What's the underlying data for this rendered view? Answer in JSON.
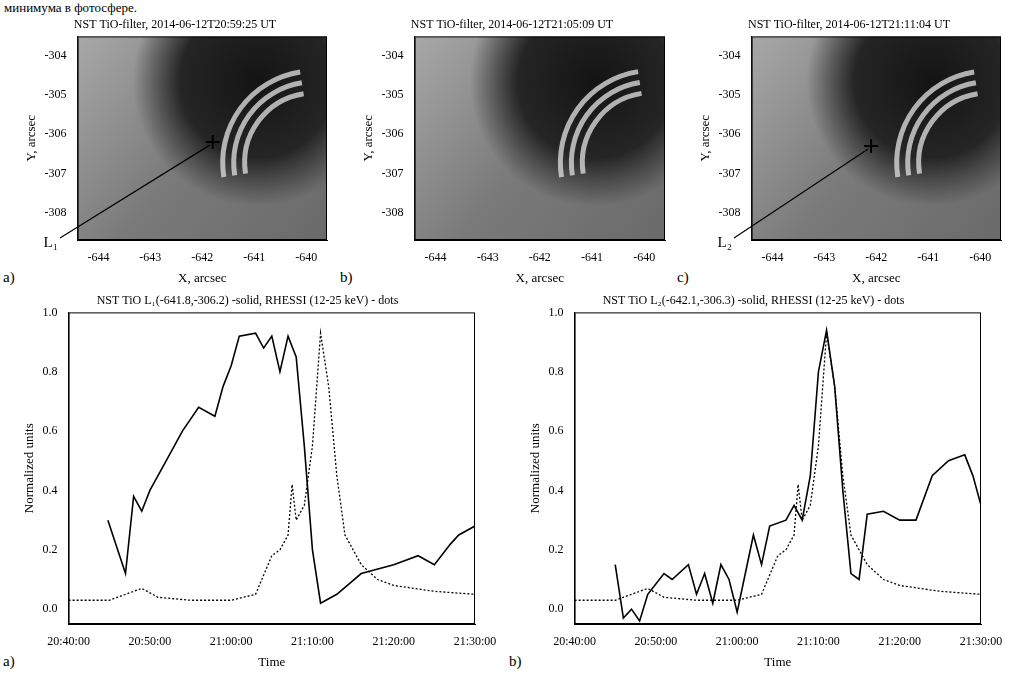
{
  "text_fragment": "минимума в фотосфере.",
  "chart_data": [
    {
      "type": "image",
      "panel": "a)",
      "title": "NST TiO-filter, 2014-06-12T20:59:25 UT",
      "x_label": "X, arcsec",
      "y_label": "Y, arcsec",
      "xlim": [
        -644.4,
        -639.6
      ],
      "ylim": [
        -308.7,
        -303.5
      ],
      "xticks": [
        -644,
        -643,
        -642,
        -641,
        -640
      ],
      "yticks": [
        -308,
        -307,
        -306,
        -305,
        -304
      ],
      "grid": false,
      "points": [
        {
          "label": "L₁",
          "x": -641.8,
          "y": -306.2,
          "marker": "plus"
        }
      ]
    },
    {
      "type": "image",
      "panel": "b)",
      "title": "NST TiO-filter, 2014-06-12T21:05:09 UT",
      "x_label": "X, arcsec",
      "y_label": "Y, arcsec",
      "xlim": [
        -644.4,
        -639.6
      ],
      "ylim": [
        -308.7,
        -303.5
      ],
      "xticks": [
        -644,
        -643,
        -642,
        -641,
        -640
      ],
      "yticks": [
        -308,
        -307,
        -306,
        -305,
        -304
      ],
      "grid": false
    },
    {
      "type": "image",
      "panel": "c)",
      "title": "NST TiO-filter, 2014-06-12T21:11:04 UT",
      "x_label": "X, arcsec",
      "y_label": "Y, arcsec",
      "xlim": [
        -644.4,
        -639.6
      ],
      "ylim": [
        -308.7,
        -303.5
      ],
      "xticks": [
        -644,
        -643,
        -642,
        -641,
        -640
      ],
      "yticks": [
        -308,
        -307,
        -306,
        -305,
        -304
      ],
      "grid": false,
      "points": [
        {
          "label": "L₂",
          "x": -642.1,
          "y": -306.3,
          "marker": "plus"
        }
      ]
    },
    {
      "type": "line",
      "panel": "a)",
      "title": "NST TiO L₁(-641.8,-306.2) -solid, RHESSI (12-25 keV) - dots",
      "x_label": "Time",
      "y_label": "Normalized units",
      "xlim": [
        "20:40:00",
        "21:30:00"
      ],
      "ylim": [
        -0.05,
        1.0
      ],
      "xticks": [
        "20:40:00",
        "20:50:00",
        "21:00:00",
        "21:10:00",
        "21:20:00",
        "21:30:00"
      ],
      "yticks": [
        {
          "value": 0,
          "label": "0.0"
        },
        {
          "value": 0.2,
          "label": "0.2"
        },
        {
          "value": 0.4,
          "label": "0.4"
        },
        {
          "value": 0.6,
          "label": "0.6"
        },
        {
          "value": 0.8,
          "label": "0.8"
        },
        {
          "value": 1,
          "label": "1.0"
        }
      ],
      "grid": false,
      "series": [
        {
          "color": "#000000",
          "line_style": "solid",
          "x": [
            "20:44:50",
            "20:47:00",
            "20:48:00",
            "20:49:00",
            "20:50:00",
            "20:52:00",
            "20:54:00",
            "20:56:00",
            "20:58:00",
            "20:59:00",
            "21:00:00",
            "21:01:00",
            "21:03:00",
            "21:04:00",
            "21:05:00",
            "21:06:00",
            "21:07:00",
            "21:08:00",
            "21:09:00",
            "21:10:00",
            "21:11:00",
            "21:13:00",
            "21:16:00",
            "21:20:00",
            "21:23:00",
            "21:25:00",
            "21:27:00",
            "21:28:00",
            "21:30:00"
          ],
          "values": [
            0.3,
            0.12,
            0.38,
            0.33,
            0.4,
            0.5,
            0.6,
            0.68,
            0.65,
            0.75,
            0.82,
            0.92,
            0.93,
            0.88,
            0.92,
            0.8,
            0.92,
            0.85,
            0.55,
            0.2,
            0.02,
            0.05,
            0.12,
            0.15,
            0.18,
            0.15,
            0.22,
            0.25,
            0.28
          ]
        },
        {
          "color": "#000000",
          "line_style": "dotted",
          "x": [
            "20:40:00",
            "20:45:00",
            "20:47:00",
            "20:49:00",
            "20:51:00",
            "20:55:00",
            "21:00:00",
            "21:03:00",
            "21:05:00",
            "21:06:00",
            "21:07:00",
            "21:07:30",
            "21:08:00",
            "21:09:00",
            "21:10:00",
            "21:11:00",
            "21:12:00",
            "21:13:00",
            "21:14:00",
            "21:15:00",
            "21:16:00",
            "21:18:00",
            "21:20:00",
            "21:25:00",
            "21:30:00"
          ],
          "values": [
            0.03,
            0.03,
            0.05,
            0.07,
            0.04,
            0.03,
            0.03,
            0.05,
            0.18,
            0.2,
            0.25,
            0.42,
            0.3,
            0.35,
            0.55,
            0.93,
            0.75,
            0.45,
            0.25,
            0.2,
            0.15,
            0.1,
            0.08,
            0.06,
            0.05
          ]
        }
      ]
    },
    {
      "type": "line",
      "panel": "b)",
      "title": "NST TiO L₂(-642.1,-306.3) -solid, RHESSI (12-25 keV) - dots",
      "x_label": "Time",
      "y_label": "Normalized units",
      "xlim": [
        "20:40:00",
        "21:30:00"
      ],
      "ylim": [
        -0.05,
        1.0
      ],
      "xticks": [
        "20:40:00",
        "20:50:00",
        "21:00:00",
        "21:10:00",
        "21:20:00",
        "21:30:00"
      ],
      "yticks": [
        {
          "value": 0,
          "label": "0.0"
        },
        {
          "value": 0.2,
          "label": "0.2"
        },
        {
          "value": 0.4,
          "label": "0.4"
        },
        {
          "value": 0.6,
          "label": "0.6"
        },
        {
          "value": 0.8,
          "label": "0.8"
        },
        {
          "value": 1,
          "label": "1.0"
        }
      ],
      "grid": false,
      "series": [
        {
          "color": "#000000",
          "line_style": "solid",
          "x": [
            "20:45:00",
            "20:46:00",
            "20:47:00",
            "20:48:00",
            "20:49:00",
            "20:51:00",
            "20:52:00",
            "20:54:00",
            "20:55:00",
            "20:56:00",
            "20:57:00",
            "20:58:00",
            "20:59:00",
            "21:00:00",
            "21:02:00",
            "21:03:00",
            "21:04:00",
            "21:06:00",
            "21:07:00",
            "21:08:00",
            "21:09:00",
            "21:10:00",
            "21:11:00",
            "21:12:00",
            "21:13:00",
            "21:14:00",
            "21:15:00",
            "21:16:00",
            "21:18:00",
            "21:20:00",
            "21:22:00",
            "21:24:00",
            "21:26:00",
            "21:28:00",
            "21:29:00",
            "21:30:00"
          ],
          "values": [
            0.15,
            -0.03,
            0.0,
            -0.04,
            0.05,
            0.12,
            0.1,
            0.15,
            0.05,
            0.12,
            0.02,
            0.15,
            0.1,
            -0.01,
            0.25,
            0.15,
            0.28,
            0.3,
            0.35,
            0.3,
            0.45,
            0.8,
            0.94,
            0.75,
            0.4,
            0.12,
            0.1,
            0.32,
            0.33,
            0.3,
            0.3,
            0.45,
            0.5,
            0.52,
            0.45,
            0.35
          ]
        },
        {
          "color": "#000000",
          "line_style": "dotted",
          "x": [
            "20:40:00",
            "20:45:00",
            "20:47:00",
            "20:49:00",
            "20:51:00",
            "20:55:00",
            "21:00:00",
            "21:03:00",
            "21:05:00",
            "21:06:00",
            "21:07:00",
            "21:07:30",
            "21:08:00",
            "21:09:00",
            "21:10:00",
            "21:11:00",
            "21:12:00",
            "21:13:00",
            "21:14:00",
            "21:15:00",
            "21:16:00",
            "21:18:00",
            "21:20:00",
            "21:25:00",
            "21:30:00"
          ],
          "values": [
            0.03,
            0.03,
            0.05,
            0.07,
            0.04,
            0.03,
            0.03,
            0.05,
            0.18,
            0.2,
            0.25,
            0.42,
            0.3,
            0.35,
            0.55,
            0.93,
            0.75,
            0.45,
            0.25,
            0.2,
            0.15,
            0.1,
            0.08,
            0.06,
            0.05
          ]
        }
      ]
    }
  ]
}
